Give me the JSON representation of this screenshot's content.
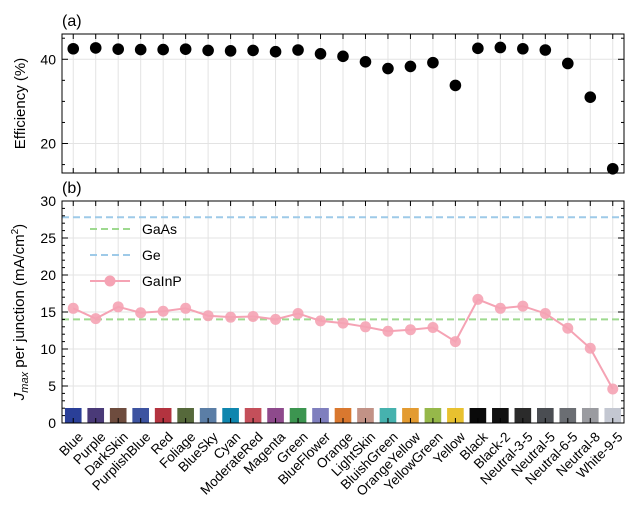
{
  "chart_data": [
    {
      "type": "scatter",
      "panel_label": "(a)",
      "ylabel": "Efficiency (%)",
      "ylim": [
        13,
        46
      ],
      "yticks": [
        20,
        40
      ],
      "grid": true,
      "marker_color": "#000000",
      "categories": [
        "Blue",
        "Purple",
        "DarkSkin",
        "PurplishBlue",
        "Red",
        "Foliage",
        "BlueSky",
        "Cyan",
        "ModerateRed",
        "Magenta",
        "Green",
        "BlueFlower",
        "Orange",
        "LightSkin",
        "BluishGreen",
        "OrangeYellow",
        "YellowGreen",
        "Yellow",
        "Black",
        "Black-2",
        "Neutral-3-5",
        "Neutral-5",
        "Neutral-6-5",
        "Neutral-8",
        "White-9-5"
      ],
      "values": [
        42.5,
        42.7,
        42.4,
        42.3,
        42.3,
        42.4,
        42.1,
        42.0,
        42.1,
        41.8,
        42.2,
        41.3,
        40.7,
        39.4,
        37.8,
        38.3,
        39.2,
        33.8,
        42.6,
        42.8,
        42.5,
        42.2,
        39.0,
        31.0,
        14.0
      ]
    },
    {
      "type": "line",
      "panel_label": "(b)",
      "ylabel_prefix": "J",
      "ylabel_sub": "max",
      "ylabel_suffix": " per junction (mA/cm",
      "ylabel_sup": "2",
      "ylabel_close": ")",
      "ylim": [
        0,
        30
      ],
      "yticks": [
        0,
        5,
        10,
        15,
        20,
        25,
        30
      ],
      "grid": true,
      "legend_position": "upper-left",
      "categories": [
        "Blue",
        "Purple",
        "DarkSkin",
        "PurplishBlue",
        "Red",
        "Foliage",
        "BlueSky",
        "Cyan",
        "ModerateRed",
        "Magenta",
        "Green",
        "BlueFlower",
        "Orange",
        "LightSkin",
        "BluishGreen",
        "OrangeYellow",
        "YellowGreen",
        "Yellow",
        "Black",
        "Black-2",
        "Neutral-3-5",
        "Neutral-5",
        "Neutral-6-5",
        "Neutral-8",
        "White-9-5"
      ],
      "swatch_colors": [
        "#2a3f98",
        "#4a3a78",
        "#6e4c3e",
        "#3d53a0",
        "#b3333f",
        "#56693b",
        "#5b7ea6",
        "#0f86ae",
        "#c44f5a",
        "#8e4a8c",
        "#3c9550",
        "#7f7fbe",
        "#d9782f",
        "#c29286",
        "#46b2ae",
        "#e39b31",
        "#96b84a",
        "#e8c12f",
        "#0a0a0a",
        "#111111",
        "#2b2b2b",
        "#4a4d52",
        "#6b6e73",
        "#9a9ba0",
        "#c3c7d1"
      ],
      "series": [
        {
          "name": "GaAs",
          "style": "dashed",
          "color": "#9ed98f",
          "constant": 14.0
        },
        {
          "name": "Ge",
          "style": "dashed",
          "color": "#9ecae8",
          "constant": 27.8
        },
        {
          "name": "GaInP",
          "style": "line-marker",
          "color": "#f5a3b4",
          "values": [
            15.5,
            14.1,
            15.7,
            14.9,
            15.1,
            15.5,
            14.5,
            14.3,
            14.4,
            14.0,
            14.8,
            13.8,
            13.5,
            13.0,
            12.4,
            12.6,
            12.9,
            11.0,
            16.7,
            15.5,
            15.8,
            14.8,
            12.8,
            10.1,
            4.6
          ]
        }
      ]
    }
  ]
}
